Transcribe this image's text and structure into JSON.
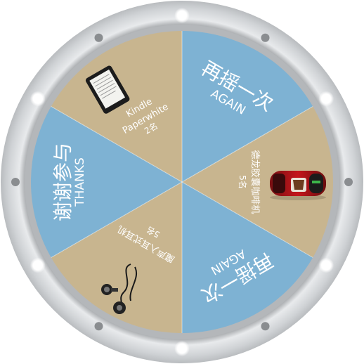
{
  "wheel": {
    "colors": {
      "blue": "#7eb2d3",
      "tan": "#c8b58f",
      "rim_outer": "#d9dcdf",
      "rim_inner": "#aeb1b4",
      "bulb_dark": "#8a8d90",
      "bulb_light": "#ffffff"
    },
    "segments": [
      {
        "id": "again-top",
        "title": "再摇一次",
        "subtitle": "AGAIN",
        "color": "blue"
      },
      {
        "id": "coffee",
        "title": "德龙胶囊咖啡机",
        "count": "5名",
        "color": "tan",
        "icon": "coffee-machine-icon"
      },
      {
        "id": "again-bottom",
        "title": "再摇一次",
        "subtitle": "AGAIN",
        "color": "blue"
      },
      {
        "id": "earphones",
        "title": "魔声入耳式耳机",
        "count": "5名",
        "color": "tan",
        "icon": "earphones-icon"
      },
      {
        "id": "thanks",
        "title": "谢谢参与",
        "subtitle": "THANKS",
        "color": "blue"
      },
      {
        "id": "kindle",
        "title": "Kindle",
        "title2": "Paperwhite",
        "count": "2名",
        "color": "tan",
        "icon": "kindle-icon"
      }
    ]
  }
}
